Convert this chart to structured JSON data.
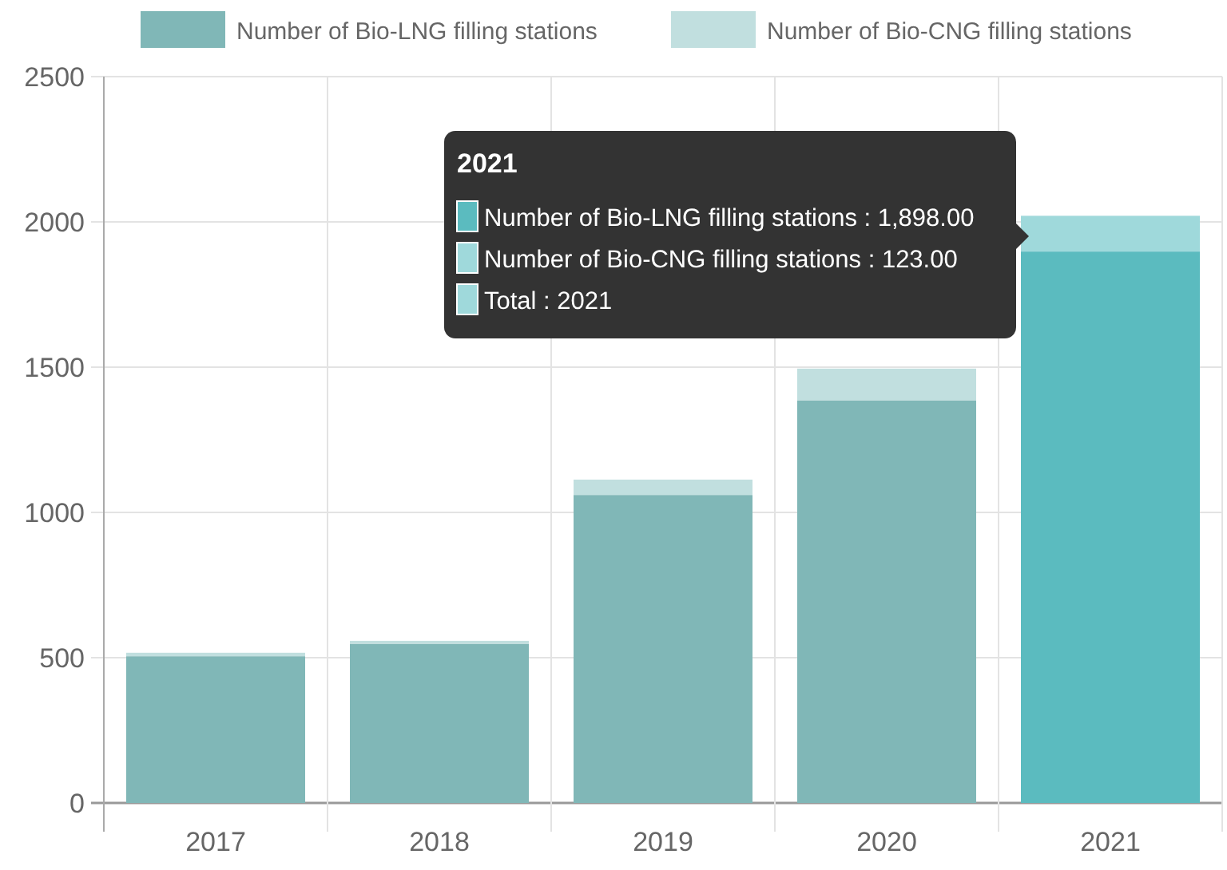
{
  "chart_data": {
    "type": "bar",
    "stacked": true,
    "categories": [
      "2017",
      "2018",
      "2019",
      "2020",
      "2021"
    ],
    "series": [
      {
        "name": "Number of Bio-LNG filling stations",
        "color": "#80b7b7",
        "colors": [
          "#80b7b7",
          "#80b7b7",
          "#80b7b7",
          "#80b7b7",
          "#5bbbbf"
        ],
        "values": [
          505,
          548,
          1060,
          1386,
          1898
        ]
      },
      {
        "name": "Number of Bio-CNG filling stations",
        "color": "#c1dfdf",
        "colors": [
          "#c1dfdf",
          "#c1dfdf",
          "#c1dfdf",
          "#c1dfdf",
          "#9fd9db"
        ],
        "values": [
          12,
          10,
          53,
          109,
          123
        ]
      }
    ],
    "ylim": [
      0,
      2500
    ],
    "yticks": [
      0,
      500,
      1000,
      1500,
      2000,
      2500
    ],
    "grid": true,
    "legend": "top",
    "annotations": [
      "2021",
      "Number of Bio-LNG filling stations : 1,898.00",
      "Number of Bio-CNG filling stations : 123.00",
      "Total : 2021"
    ]
  }
}
